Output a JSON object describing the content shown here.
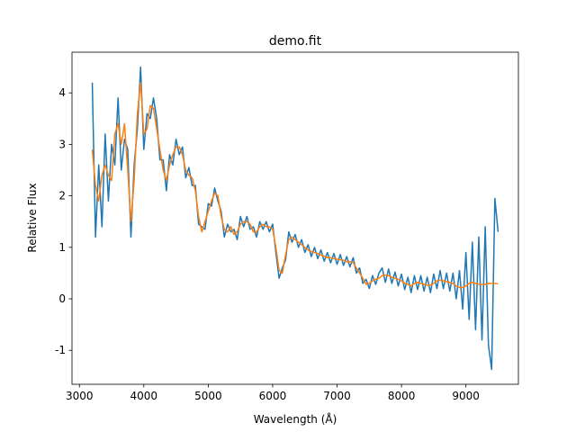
{
  "chart_data": {
    "type": "line",
    "title": "demo.fit",
    "xlabel": "Wavelength (Å)",
    "ylabel": "Relative Flux",
    "x": [
      3200,
      3250,
      3300,
      3350,
      3400,
      3450,
      3500,
      3550,
      3600,
      3650,
      3700,
      3750,
      3800,
      3850,
      3900,
      3950,
      4000,
      4050,
      4100,
      4150,
      4200,
      4250,
      4300,
      4350,
      4400,
      4450,
      4500,
      4550,
      4600,
      4650,
      4700,
      4750,
      4800,
      4850,
      4900,
      4950,
      5000,
      5050,
      5100,
      5150,
      5200,
      5250,
      5300,
      5350,
      5400,
      5450,
      5500,
      5550,
      5600,
      5650,
      5700,
      5750,
      5800,
      5850,
      5900,
      5950,
      6000,
      6050,
      6100,
      6150,
      6200,
      6250,
      6300,
      6350,
      6400,
      6450,
      6500,
      6550,
      6600,
      6650,
      6700,
      6750,
      6800,
      6850,
      6900,
      6950,
      7000,
      7050,
      7100,
      7150,
      7200,
      7250,
      7300,
      7350,
      7400,
      7450,
      7500,
      7550,
      7600,
      7650,
      7700,
      7750,
      7800,
      7850,
      7900,
      7950,
      8000,
      8050,
      8100,
      8150,
      8200,
      8250,
      8300,
      8350,
      8400,
      8450,
      8500,
      8550,
      8600,
      8650,
      8700,
      8750,
      8800,
      8850,
      8900,
      8950,
      9000,
      9050,
      9100,
      9150,
      9200,
      9250,
      9300,
      9350,
      9400,
      9450,
      9500
    ],
    "series": [
      {
        "color": "#1f77b4",
        "values": [
          4.2,
          1.2,
          2.6,
          1.4,
          3.2,
          1.9,
          3.0,
          2.6,
          3.9,
          2.5,
          3.1,
          2.9,
          1.2,
          2.6,
          3.3,
          4.5,
          2.9,
          3.6,
          3.5,
          3.9,
          3.5,
          2.7,
          2.7,
          2.1,
          2.8,
          2.6,
          3.1,
          2.8,
          2.95,
          2.35,
          2.55,
          2.2,
          2.2,
          1.45,
          1.4,
          1.35,
          1.85,
          1.8,
          2.15,
          1.9,
          1.7,
          1.2,
          1.45,
          1.3,
          1.35,
          1.15,
          1.6,
          1.4,
          1.6,
          1.35,
          1.4,
          1.2,
          1.5,
          1.35,
          1.5,
          1.3,
          1.45,
          0.9,
          0.4,
          0.6,
          0.75,
          1.3,
          1.1,
          1.25,
          1.0,
          1.15,
          0.9,
          1.05,
          0.82,
          1.0,
          0.78,
          0.95,
          0.73,
          0.9,
          0.7,
          0.88,
          0.67,
          0.86,
          0.65,
          0.82,
          0.62,
          0.8,
          0.5,
          0.6,
          0.3,
          0.38,
          0.2,
          0.45,
          0.28,
          0.5,
          0.6,
          0.32,
          0.58,
          0.3,
          0.52,
          0.25,
          0.48,
          0.18,
          0.42,
          0.12,
          0.45,
          0.18,
          0.45,
          0.15,
          0.42,
          0.12,
          0.48,
          0.2,
          0.55,
          0.2,
          0.5,
          0.15,
          0.5,
          0.0,
          0.55,
          -0.2,
          0.9,
          -0.4,
          1.1,
          -0.6,
          1.2,
          -0.8,
          1.4,
          -0.9,
          -1.37,
          1.95,
          1.3
        ]
      },
      {
        "color": "#ff7f0e",
        "values": [
          2.9,
          2.2,
          1.9,
          2.4,
          2.6,
          2.4,
          2.3,
          3.2,
          3.4,
          3.0,
          3.4,
          2.5,
          1.5,
          2.3,
          3.6,
          4.2,
          3.2,
          3.3,
          3.75,
          3.7,
          3.3,
          2.9,
          2.5,
          2.3,
          2.6,
          2.8,
          2.95,
          2.95,
          2.8,
          2.5,
          2.4,
          2.35,
          2.1,
          1.6,
          1.3,
          1.5,
          1.7,
          1.9,
          2.05,
          2.0,
          1.6,
          1.35,
          1.3,
          1.4,
          1.25,
          1.3,
          1.45,
          1.5,
          1.5,
          1.45,
          1.3,
          1.3,
          1.4,
          1.45,
          1.4,
          1.4,
          1.35,
          1.0,
          0.55,
          0.5,
          0.85,
          1.15,
          1.2,
          1.15,
          1.1,
          1.05,
          1.0,
          0.95,
          0.92,
          0.9,
          0.88,
          0.85,
          0.83,
          0.8,
          0.8,
          0.78,
          0.77,
          0.76,
          0.75,
          0.72,
          0.72,
          0.7,
          0.6,
          0.5,
          0.4,
          0.28,
          0.3,
          0.35,
          0.38,
          0.4,
          0.45,
          0.46,
          0.45,
          0.42,
          0.4,
          0.38,
          0.35,
          0.3,
          0.28,
          0.25,
          0.3,
          0.32,
          0.3,
          0.28,
          0.26,
          0.27,
          0.3,
          0.35,
          0.36,
          0.35,
          0.33,
          0.32,
          0.3,
          0.25,
          0.22,
          0.22,
          0.25,
          0.3,
          0.32,
          0.3,
          0.28,
          0.28,
          0.28,
          0.3,
          0.3,
          0.3,
          0.29
        ]
      }
    ],
    "xlim": [
      2885,
      9815
    ],
    "ylim": [
      -1.66,
      4.79
    ],
    "xticks": [
      3000,
      4000,
      5000,
      6000,
      7000,
      8000,
      9000
    ],
    "yticks": [
      -1,
      0,
      1,
      2,
      3,
      4
    ],
    "grid": false
  }
}
